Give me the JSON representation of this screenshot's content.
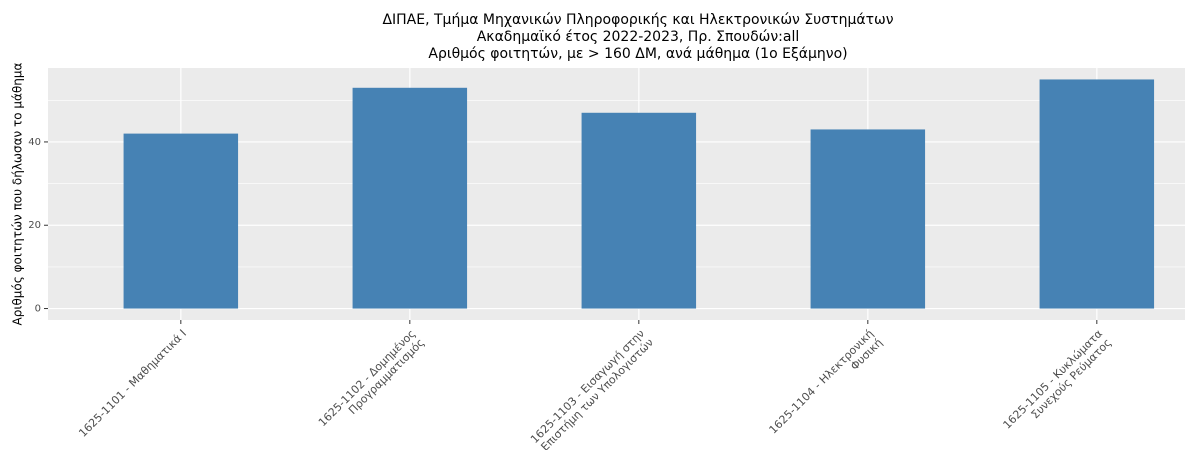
{
  "chart_data": {
    "type": "bar",
    "title": [
      "ΔΙΠΑΕ, Τμήμα Μηχανικών Πληροφορικής και Ηλεκτρονικών Συστημάτων",
      "Ακαδημαϊκό έτος 2022-2023, Πρ. Σπουδών:all",
      "Αριθμός φοιτητών, με > 160 ΔΜ, ανά μάθημα (1ο Εξάμηνο)"
    ],
    "y_label": "Αριθμός φοιτητών που δήλωσαν το μάθημα",
    "categories": [
      "1625-1101 - Μαθηματικά Ι",
      "1625-1102 - Δομημένος\nΠρογραμματισμός",
      "1625-1103 - Εισαγωγή στην\nΕπιστήμη των Υπολογιστών",
      "1625-1104 - Ηλεκτρονική\nΦυσική",
      "1625-1105 - Κυκλώματα\nΣυνεχούς Ρεύματος"
    ],
    "values": [
      42,
      53,
      47,
      43,
      55
    ],
    "color": "#4682b4",
    "ylim": [
      -2.75,
      57.75
    ],
    "yticks": [
      0,
      20,
      40
    ],
    "minor_yticks": [
      10,
      30,
      50
    ],
    "grid": true
  }
}
